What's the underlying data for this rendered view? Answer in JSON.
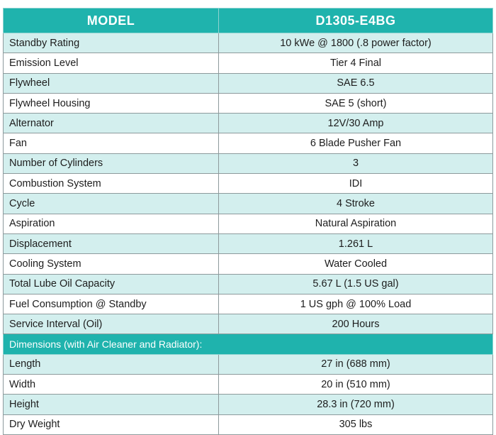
{
  "header": {
    "col1": "MODEL",
    "col2": "D1305-E4BG"
  },
  "specs": [
    {
      "label": "Standby Rating",
      "value": "10 kWe @ 1800 (.8 power factor)"
    },
    {
      "label": "Emission Level",
      "value": "Tier 4 Final"
    },
    {
      "label": "Flywheel",
      "value": "SAE 6.5"
    },
    {
      "label": "Flywheel Housing",
      "value": "SAE 5 (short)"
    },
    {
      "label": "Alternator",
      "value": "12V/30 Amp"
    },
    {
      "label": "Fan",
      "value": "6 Blade Pusher Fan"
    },
    {
      "label": "Number of Cylinders",
      "value": "3"
    },
    {
      "label": "Combustion System",
      "value": "IDI"
    },
    {
      "label": "Cycle",
      "value": "4 Stroke"
    },
    {
      "label": "Aspiration",
      "value": "Natural Aspiration"
    },
    {
      "label": "Displacement",
      "value": "1.261 L"
    },
    {
      "label": "Cooling System",
      "value": "Water Cooled"
    },
    {
      "label": "Total Lube Oil Capacity",
      "value": "5.67 L (1.5 US gal)"
    },
    {
      "label": "Fuel Consumption @ Standby",
      "value": "1 US gph @ 100% Load"
    },
    {
      "label": "Service Interval (Oil)",
      "value": "200 Hours"
    }
  ],
  "dimensions_heading": "Dimensions (with Air Cleaner and Radiator):",
  "dimensions": [
    {
      "label": "Length",
      "value": "27 in (688 mm)"
    },
    {
      "label": "Width",
      "value": "20 in (510 mm)"
    },
    {
      "label": "Height",
      "value": "28.3 in (720 mm)"
    },
    {
      "label": "Dry Weight",
      "value": "305 lbs"
    }
  ],
  "colors": {
    "header_bg": "#1fb3ad",
    "row_alt_bg": "#d3efee",
    "row_plain_bg": "#ffffff",
    "border": "#8d9a9c"
  }
}
